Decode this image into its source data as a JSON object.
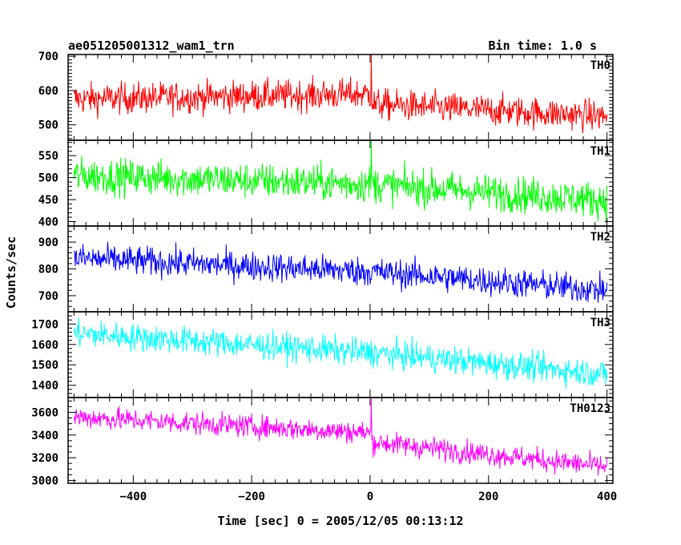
{
  "chart_data": {
    "type": "line",
    "title": "ae051205001312_wam1_trn",
    "bin_time_label": "Bin time: 1.0 s",
    "xlabel": "Time [sec] 0 = 2005/12/05 00:13:12",
    "ylabel": "Counts/sec",
    "xlim": [
      -510,
      410
    ],
    "x_ticks": [
      -400,
      -200,
      0,
      200,
      400
    ],
    "x_tick_labels": [
      "−400",
      "−200",
      "0",
      "200",
      "400"
    ],
    "x_range": [
      -500,
      400
    ],
    "grid": false,
    "panels": [
      {
        "name": "TH0",
        "color": "#ff0000",
        "ylim": [
          455,
          705
        ],
        "y_ticks": [
          500,
          600,
          700
        ],
        "y_tick_labels": [
          "500",
          "600",
          "700"
        ],
        "trend": {
          "x": [
            -500,
            0,
            5,
            400
          ],
          "y": [
            575,
            590,
            560,
            525
          ]
        },
        "noise": 50,
        "spike": {
          "x": 2,
          "y": 705
        }
      },
      {
        "name": "TH1",
        "color": "#00ff00",
        "ylim": [
          390,
          585
        ],
        "y_ticks": [
          400,
          450,
          500,
          550
        ],
        "y_tick_labels": [
          "400",
          "450",
          "500",
          "550"
        ],
        "trend": {
          "x": [
            -500,
            0,
            400
          ],
          "y": [
            505,
            485,
            448
          ]
        },
        "noise": 45,
        "spike": {
          "x": 2,
          "y": 585
        }
      },
      {
        "name": "TH2",
        "color": "#0000ff",
        "ylim": [
          640,
          960
        ],
        "y_ticks": [
          700,
          800,
          900
        ],
        "y_tick_labels": [
          "700",
          "800",
          "900"
        ],
        "trend": {
          "x": [
            -500,
            0,
            400
          ],
          "y": [
            840,
            790,
            720
          ]
        },
        "noise": 60,
        "spike": null
      },
      {
        "name": "TH3",
        "color": "#00ffff",
        "ylim": [
          1340,
          1760
        ],
        "y_ticks": [
          1400,
          1500,
          1600,
          1700
        ],
        "y_tick_labels": [
          "1400",
          "1500",
          "1600",
          "1700"
        ],
        "trend": {
          "x": [
            -500,
            0,
            400
          ],
          "y": [
            1655,
            1560,
            1455
          ]
        },
        "noise": 75,
        "spike": null
      },
      {
        "name": "TH0123",
        "color": "#ff00ff",
        "ylim": [
          2975,
          3730
        ],
        "y_ticks": [
          3000,
          3200,
          3400,
          3600
        ],
        "y_tick_labels": [
          "3000",
          "3200",
          "3400",
          "3600"
        ],
        "trend": {
          "x": [
            -500,
            0,
            5,
            400
          ],
          "y": [
            3560,
            3420,
            3340,
            3120
          ]
        },
        "noise": 110,
        "spike": {
          "x": 2,
          "y": 3720
        }
      }
    ]
  }
}
